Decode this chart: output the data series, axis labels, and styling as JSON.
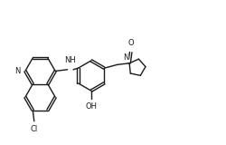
{
  "bg_color": "#ffffff",
  "line_color": "#1a1a1a",
  "lw": 1.0,
  "fs": 6.0,
  "figsize": [
    2.51,
    1.6
  ],
  "dpi": 100,
  "xlim": [
    -0.3,
    7.5
  ],
  "ylim": [
    -0.2,
    4.8
  ]
}
